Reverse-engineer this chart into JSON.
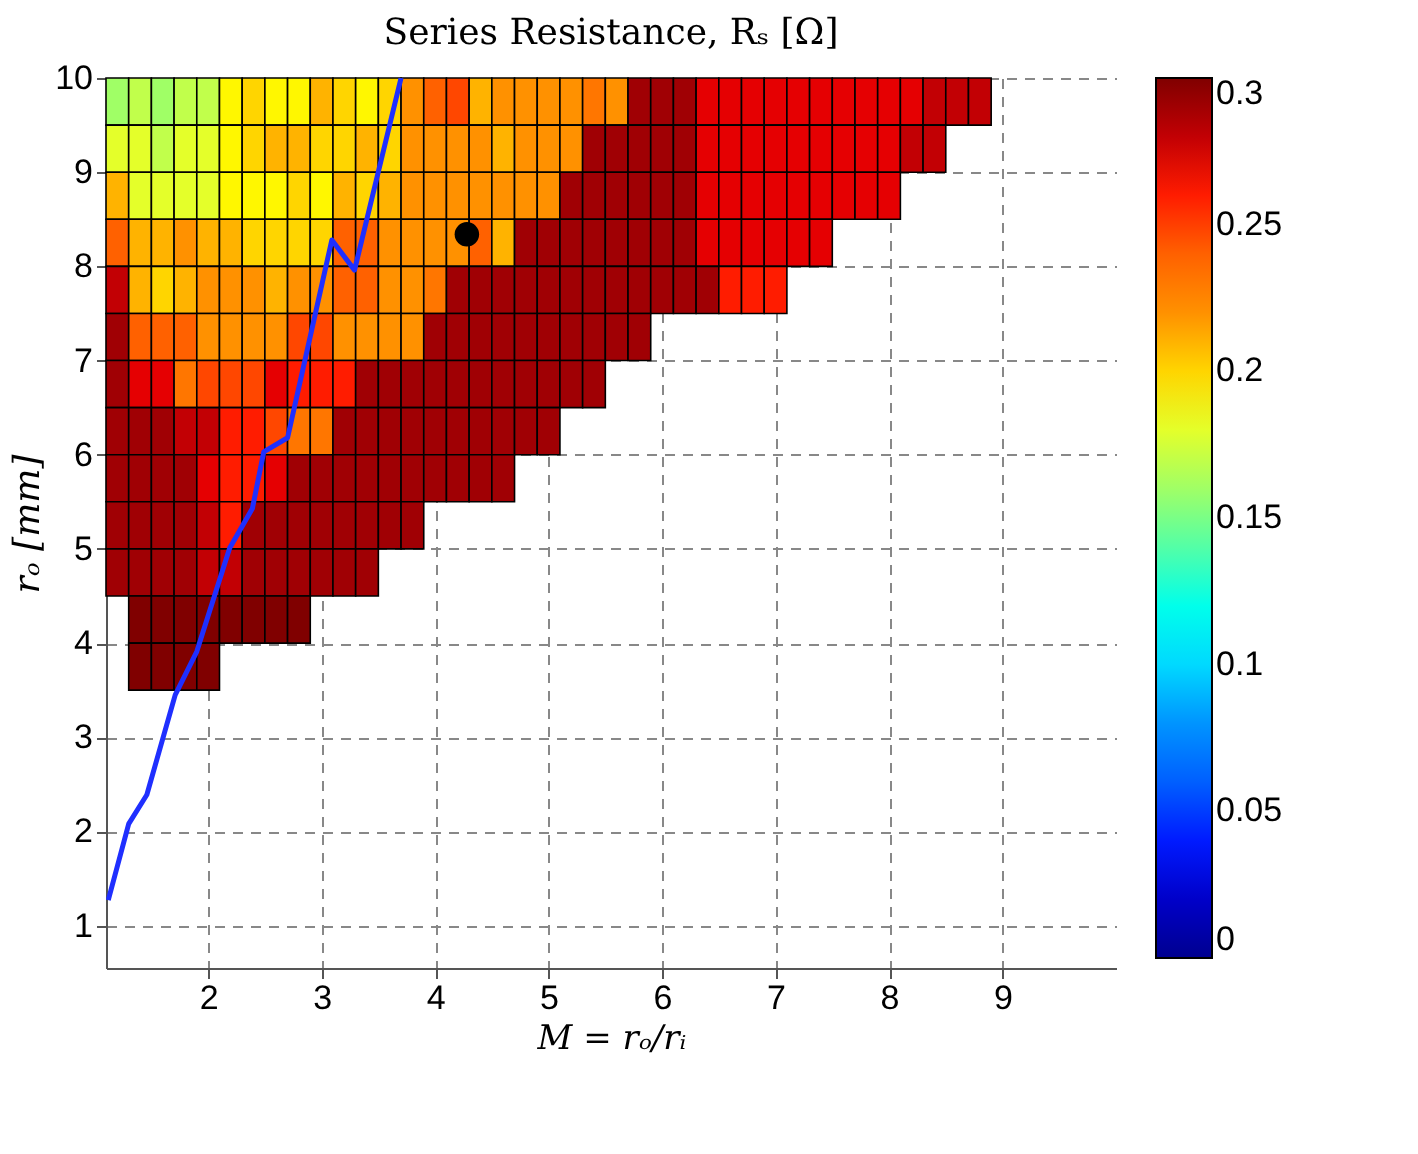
{
  "chart_data": {
    "type": "heatmap",
    "title": "Series Resistance, Rₛ [Ω]",
    "xlabel": "M = rₒ/rᵢ",
    "ylabel": "rₒ [mm]",
    "x": [
      1.2,
      1.4,
      1.6,
      1.8,
      2.0,
      2.2,
      2.4,
      2.6,
      2.8,
      3.0,
      3.2,
      3.4,
      3.6,
      3.8,
      4.0,
      4.2,
      4.4,
      4.6,
      4.8,
      5.0,
      5.2,
      5.4,
      5.6,
      5.8,
      6.0,
      6.2,
      6.4,
      6.6,
      6.8,
      7.0,
      7.2,
      7.4,
      7.6,
      7.8,
      8.0,
      8.2,
      8.4,
      8.6,
      8.8
    ],
    "y": [
      9.75,
      9.25,
      8.75,
      8.25,
      7.75,
      7.25,
      6.75,
      6.25,
      5.75,
      5.25,
      4.75,
      4.25,
      3.75
    ],
    "cells": [
      [
        0.16,
        0.17,
        0.16,
        0.17,
        0.17,
        0.19,
        0.2,
        0.19,
        0.19,
        0.21,
        0.2,
        0.19,
        0.2,
        0.22,
        0.24,
        0.25,
        0.21,
        0.22,
        0.22,
        0.22,
        0.22,
        0.23,
        0.22,
        0.29,
        0.29,
        0.29,
        0.27,
        0.27,
        0.27,
        0.27,
        0.27,
        0.27,
        0.27,
        0.27,
        0.27,
        0.27,
        0.28,
        0.28,
        0.28
      ],
      [
        0.18,
        0.18,
        0.17,
        0.18,
        0.18,
        0.19,
        0.2,
        0.21,
        0.21,
        0.2,
        0.2,
        0.21,
        0.2,
        0.22,
        0.22,
        0.22,
        0.22,
        0.21,
        0.22,
        0.22,
        0.22,
        0.29,
        0.29,
        0.29,
        0.29,
        0.29,
        0.27,
        0.27,
        0.27,
        0.27,
        0.27,
        0.27,
        0.27,
        0.27,
        0.27,
        0.28,
        0.28,
        null,
        null
      ],
      [
        0.21,
        0.18,
        0.18,
        0.18,
        0.18,
        0.19,
        0.19,
        0.19,
        0.2,
        0.19,
        0.21,
        0.2,
        0.21,
        0.22,
        0.22,
        0.22,
        0.22,
        0.22,
        0.22,
        0.22,
        0.29,
        0.29,
        0.29,
        0.29,
        0.29,
        0.29,
        0.27,
        0.27,
        0.27,
        0.27,
        0.27,
        0.27,
        0.27,
        0.27,
        0.27,
        null,
        null,
        null,
        null
      ],
      [
        0.24,
        0.21,
        0.21,
        0.22,
        0.21,
        0.21,
        0.2,
        0.2,
        0.2,
        0.2,
        0.24,
        0.24,
        0.22,
        0.22,
        0.22,
        0.22,
        0.24,
        0.21,
        0.29,
        0.29,
        0.29,
        0.29,
        0.29,
        0.29,
        0.29,
        0.29,
        0.27,
        0.27,
        0.27,
        0.27,
        0.27,
        0.27,
        null,
        null,
        null,
        null,
        null,
        null,
        null
      ],
      [
        0.28,
        0.21,
        0.2,
        0.21,
        0.22,
        0.22,
        0.22,
        0.21,
        0.22,
        0.22,
        0.24,
        0.24,
        0.22,
        0.22,
        0.23,
        0.29,
        0.29,
        0.29,
        0.29,
        0.29,
        0.29,
        0.29,
        0.29,
        0.29,
        0.29,
        0.29,
        0.29,
        0.26,
        0.26,
        0.26,
        null,
        null,
        null,
        null,
        null,
        null,
        null,
        null,
        null
      ],
      [
        0.29,
        0.24,
        0.24,
        0.24,
        0.22,
        0.22,
        0.22,
        0.22,
        0.25,
        0.25,
        0.22,
        0.22,
        0.22,
        0.22,
        0.29,
        0.29,
        0.29,
        0.29,
        0.29,
        0.29,
        0.29,
        0.29,
        0.29,
        0.29,
        null,
        null,
        null,
        null,
        null,
        null,
        null,
        null,
        null,
        null,
        null,
        null,
        null,
        null,
        null
      ],
      [
        0.29,
        0.27,
        0.27,
        0.23,
        0.25,
        0.25,
        0.25,
        0.27,
        0.26,
        0.26,
        0.26,
        0.29,
        0.29,
        0.29,
        0.29,
        0.29,
        0.29,
        0.29,
        0.29,
        0.29,
        0.29,
        0.29,
        null,
        null,
        null,
        null,
        null,
        null,
        null,
        null,
        null,
        null,
        null,
        null,
        null,
        null,
        null,
        null,
        null
      ],
      [
        0.29,
        0.29,
        0.29,
        0.28,
        0.28,
        0.26,
        0.26,
        0.25,
        0.23,
        0.23,
        0.29,
        0.29,
        0.29,
        0.29,
        0.29,
        0.29,
        0.29,
        0.29,
        0.29,
        0.29,
        null,
        null,
        null,
        null,
        null,
        null,
        null,
        null,
        null,
        null,
        null,
        null,
        null,
        null,
        null,
        null,
        null,
        null,
        null
      ],
      [
        0.29,
        0.29,
        0.29,
        0.29,
        0.27,
        0.26,
        0.26,
        0.27,
        0.29,
        0.29,
        0.29,
        0.29,
        0.29,
        0.29,
        0.29,
        0.29,
        0.29,
        0.29,
        null,
        null,
        null,
        null,
        null,
        null,
        null,
        null,
        null,
        null,
        null,
        null,
        null,
        null,
        null,
        null,
        null,
        null,
        null,
        null,
        null
      ],
      [
        0.29,
        0.29,
        0.29,
        0.29,
        0.28,
        0.26,
        0.29,
        0.29,
        0.29,
        0.29,
        0.29,
        0.29,
        0.29,
        0.29,
        null,
        null,
        null,
        null,
        null,
        null,
        null,
        null,
        null,
        null,
        null,
        null,
        null,
        null,
        null,
        null,
        null,
        null,
        null,
        null,
        null,
        null,
        null,
        null,
        null
      ],
      [
        0.29,
        0.29,
        0.29,
        0.29,
        0.28,
        0.28,
        0.29,
        0.29,
        0.29,
        0.29,
        0.29,
        0.29,
        null,
        null,
        null,
        null,
        null,
        null,
        null,
        null,
        null,
        null,
        null,
        null,
        null,
        null,
        null,
        null,
        null,
        null,
        null,
        null,
        null,
        null,
        null,
        null,
        null,
        null,
        null
      ],
      [
        null,
        0.3,
        0.3,
        0.3,
        0.3,
        0.3,
        0.3,
        0.3,
        0.3,
        null,
        null,
        null,
        null,
        null,
        null,
        null,
        null,
        null,
        null,
        null,
        null,
        null,
        null,
        null,
        null,
        null,
        null,
        null,
        null,
        null,
        null,
        null,
        null,
        null,
        null,
        null,
        null,
        null,
        null
      ],
      [
        null,
        0.3,
        0.3,
        0.3,
        0.3,
        null,
        null,
        null,
        null,
        null,
        null,
        null,
        null,
        null,
        null,
        null,
        null,
        null,
        null,
        null,
        null,
        null,
        null,
        null,
        null,
        null,
        null,
        null,
        null,
        null,
        null,
        null,
        null,
        null,
        null,
        null,
        null,
        null,
        null
      ]
    ],
    "clim": [
      0,
      0.3
    ],
    "cticks": [
      0,
      0.05,
      0.1,
      0.15,
      0.2,
      0.25,
      0.3
    ],
    "series": [
      {
        "type": "line",
        "color": "#1f2fff",
        "x": [
          1.12,
          1.3,
          1.46,
          1.71,
          1.9,
          2.19,
          2.39,
          2.49,
          2.7,
          3.09,
          3.29,
          3.7
        ],
        "values": [
          1.27,
          2.08,
          2.39,
          3.45,
          3.91,
          5.01,
          5.43,
          6.03,
          6.18,
          8.28,
          7.96,
          10.0
        ]
      },
      {
        "type": "scatter",
        "color": "#000000",
        "marker": "circle",
        "x": [
          4.28
        ],
        "values": [
          8.34
        ]
      }
    ],
    "xlim": [
      1.1,
      10
    ],
    "ylim": [
      0.55,
      10
    ],
    "xticks": [
      2,
      3,
      4,
      5,
      6,
      7,
      8,
      9
    ],
    "yticks": [
      1,
      2,
      3,
      4,
      5,
      6,
      7,
      8,
      9,
      10
    ],
    "grid": true
  }
}
